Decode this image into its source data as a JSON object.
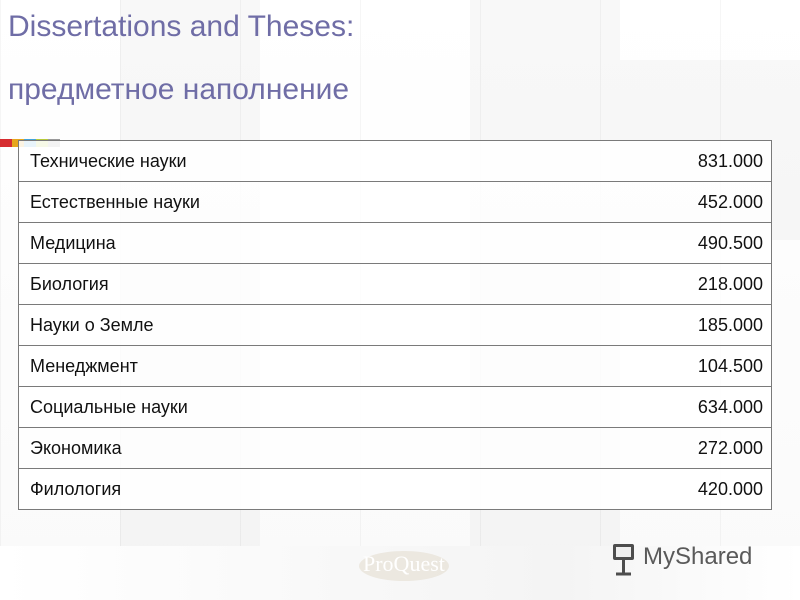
{
  "title": {
    "line1": "Dissertations and Theses:",
    "line2": "предметное наполнение"
  },
  "colors": {
    "title": "#6f6da6",
    "table_border": "#7a7a7a",
    "strip": [
      "#d62d30",
      "#e6a61d",
      "#44a3d9",
      "#b6c93b",
      "#9a9a9a"
    ]
  },
  "table": {
    "rows": [
      {
        "label": "Технические науки",
        "value": "831.000"
      },
      {
        "label": "Естественные науки",
        "value": "452.000"
      },
      {
        "label": "Медицина",
        "value": "490.500"
      },
      {
        "label": "Биология",
        "value": "218.000"
      },
      {
        "label": "Науки о Земле",
        "value": "185.000"
      },
      {
        "label": "Менеджмент",
        "value": "104.500"
      },
      {
        "label": "Социальные науки",
        "value": "634.000"
      },
      {
        "label": "Экономика",
        "value": "272.000"
      },
      {
        "label": "Филология",
        "value": "420.000"
      }
    ]
  },
  "logos": {
    "proquest": "ProQuest",
    "myshared": "MyShared",
    "myshared_icon": "presentation-board-icon"
  }
}
